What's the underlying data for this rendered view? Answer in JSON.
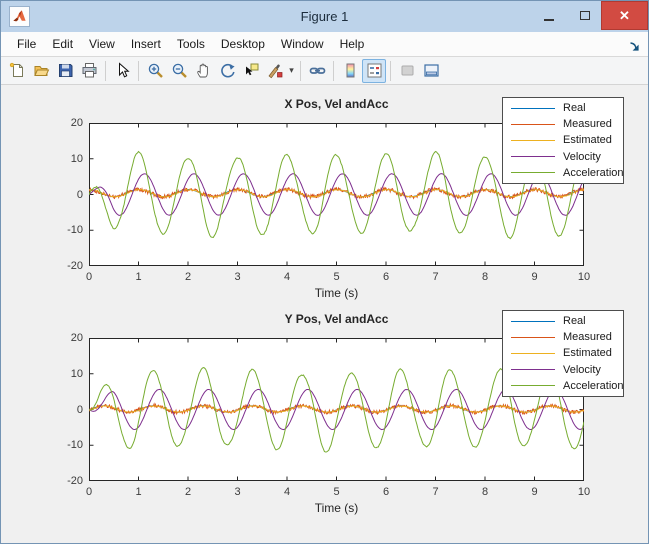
{
  "window": {
    "title": "Figure 1",
    "controls": {
      "minimize": "",
      "maximize": "",
      "close": "✕"
    }
  },
  "menu_bar": {
    "items": [
      "File",
      "Edit",
      "View",
      "Insert",
      "Tools",
      "Desktop",
      "Window",
      "Help"
    ],
    "dock_icon_name": "dock-figure-icon"
  },
  "toolbar": {
    "buttons": [
      {
        "name": "new-figure"
      },
      {
        "name": "open-file"
      },
      {
        "name": "save-figure"
      },
      {
        "name": "print-figure"
      },
      {
        "name": "edit-plot"
      },
      {
        "name": "zoom-in"
      },
      {
        "name": "zoom-out"
      },
      {
        "name": "pan"
      },
      {
        "name": "rotate-3d"
      },
      {
        "name": "data-cursor"
      },
      {
        "name": "brush-data",
        "has_dropdown": true
      },
      {
        "name": "link-plot"
      },
      {
        "name": "insert-colorbar"
      },
      {
        "name": "insert-legend",
        "selected": true
      },
      {
        "name": "hide-plot-tools",
        "disabled": true
      },
      {
        "name": "show-plot-tools"
      }
    ],
    "separators_after": [
      "print-figure",
      "edit-plot",
      "brush-data",
      "link-plot",
      "insert-legend"
    ]
  },
  "colors": {
    "titlebar": "#bdd3ea",
    "close_button": "#d24b42",
    "figure_background": "#f0f0f0",
    "axes_background": "#ffffff",
    "axes_line": "#262626"
  },
  "chart_data": [
    {
      "type": "line",
      "title": "X Pos, Vel andAcc",
      "xlabel": "Time (s)",
      "xlim": [
        0,
        10
      ],
      "ylim": [
        -20,
        20
      ],
      "xticks": [
        0,
        1,
        2,
        3,
        4,
        5,
        6,
        7,
        8,
        9,
        10
      ],
      "yticks": [
        -20,
        -10,
        0,
        10,
        20
      ],
      "grid": false,
      "legend_position": "northeast",
      "signal_model": "y(t) = offset + amplitude*cos(2*pi*frequency_hz*(t-phase_peak_t)) * startup_ramp + uniform_noise",
      "series": [
        {
          "name": "Real",
          "color": "#0072BD",
          "amplitude": 1.0,
          "frequency_hz": 1,
          "phase_peak_t": 0.0,
          "offset": 0.4,
          "noise": 0.0,
          "ramp_s": 0
        },
        {
          "name": "Measured",
          "color": "#D95319",
          "amplitude": 1.0,
          "frequency_hz": 1,
          "phase_peak_t": 0.0,
          "offset": 0.4,
          "noise": 0.55,
          "ramp_s": 0
        },
        {
          "name": "Estimated",
          "color": "#EDB120",
          "amplitude": 1.0,
          "frequency_hz": 1,
          "phase_peak_t": 0.02,
          "offset": 0.35,
          "noise": 0.08,
          "ramp_s": 0
        },
        {
          "name": "Velocity",
          "color": "#7E2F8E",
          "amplitude": 5.8,
          "frequency_hz": 1,
          "phase_peak_t": 0.12,
          "offset": 0,
          "noise": 0.06,
          "ramp_s": 0.5
        },
        {
          "name": "Acceleration",
          "color": "#77AC30",
          "amplitude": 11.0,
          "frequency_hz": 1,
          "phase_peak_t": 0.0,
          "offset": 0,
          "noise": 0.18,
          "ramp_s": 0.5,
          "amp_jitter": 0.07
        }
      ]
    },
    {
      "type": "line",
      "title": "Y Pos, Vel andAcc",
      "xlabel": "Time (s)",
      "xlim": [
        0,
        10
      ],
      "ylim": [
        -20,
        20
      ],
      "xticks": [
        0,
        1,
        2,
        3,
        4,
        5,
        6,
        7,
        8,
        9,
        10
      ],
      "yticks": [
        -20,
        -10,
        0,
        10,
        20
      ],
      "grid": false,
      "legend_position": "northeast",
      "signal_model": "y(t) = offset + amplitude*cos(2*pi*frequency_hz*(t-phase_peak_t)) * startup_ramp + uniform_noise",
      "series": [
        {
          "name": "Real",
          "color": "#0072BD",
          "amplitude": 0.9,
          "frequency_hz": 1,
          "phase_peak_t": 0.3,
          "offset": 0.15,
          "noise": 0.0,
          "ramp_s": 0
        },
        {
          "name": "Measured",
          "color": "#D95319",
          "amplitude": 0.9,
          "frequency_hz": 1,
          "phase_peak_t": 0.3,
          "offset": 0.15,
          "noise": 0.5,
          "ramp_s": 0
        },
        {
          "name": "Estimated",
          "color": "#EDB120",
          "amplitude": 0.85,
          "frequency_hz": 1,
          "phase_peak_t": 0.32,
          "offset": 0.12,
          "noise": 0.07,
          "ramp_s": 0
        },
        {
          "name": "Velocity",
          "color": "#7E2F8E",
          "amplitude": 5.6,
          "frequency_hz": 1,
          "phase_peak_t": 0.42,
          "offset": 0,
          "noise": 0.05,
          "ramp_s": 0.5
        },
        {
          "name": "Acceleration",
          "color": "#77AC30",
          "amplitude": 10.8,
          "frequency_hz": 1,
          "phase_peak_t": 0.3,
          "offset": 0,
          "noise": 0.15,
          "ramp_s": 0.5,
          "amp_jitter": 0.07
        }
      ]
    }
  ]
}
